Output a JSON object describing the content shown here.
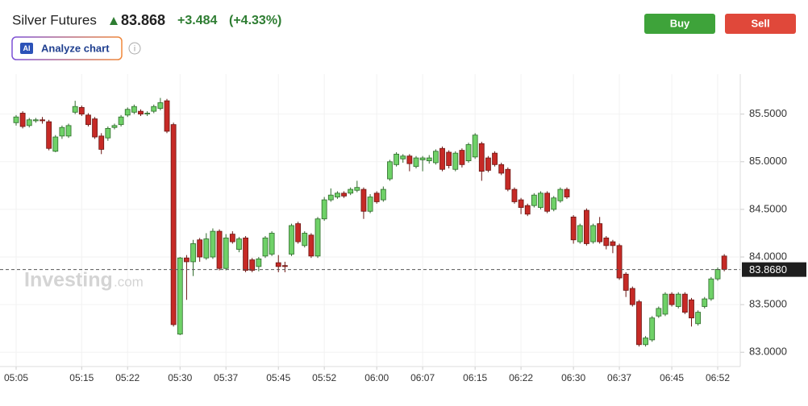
{
  "header": {
    "title": "Silver Futures",
    "price": "83.868",
    "change": "+3.484",
    "change_percent": "(+4.33%)",
    "ai_badge": "AI",
    "analyze": "Analyze chart",
    "buy": "Buy",
    "sell": "Sell"
  },
  "chart_data": {
    "type": "candlestick",
    "watermark": "Investing",
    "watermark_suffix": ".com",
    "categories": [
      "05:05",
      null,
      null,
      null,
      null,
      null,
      null,
      null,
      null,
      null,
      "05:15",
      null,
      null,
      null,
      null,
      null,
      null,
      "05:22",
      null,
      null,
      null,
      null,
      null,
      null,
      null,
      "05:30",
      null,
      null,
      null,
      null,
      null,
      null,
      "05:37",
      null,
      null,
      null,
      null,
      null,
      null,
      null,
      "05:45",
      null,
      null,
      null,
      null,
      null,
      null,
      "05:52",
      null,
      null,
      null,
      null,
      null,
      null,
      null,
      "06:00",
      null,
      null,
      null,
      null,
      null,
      null,
      "06:07",
      null,
      null,
      null,
      null,
      null,
      null,
      null,
      "06:15",
      null,
      null,
      null,
      null,
      null,
      null,
      "06:22",
      null,
      null,
      null,
      null,
      null,
      null,
      null,
      "06:30",
      null,
      null,
      null,
      null,
      null,
      null,
      "06:37",
      null,
      null,
      null,
      null,
      null,
      null,
      null,
      "06:45",
      null,
      null,
      null,
      null,
      null,
      null,
      "06:52",
      null
    ],
    "open": [
      85.41,
      85.51,
      85.38,
      85.43,
      85.44,
      85.42,
      85.11,
      85.27,
      85.27,
      85.52,
      85.57,
      85.49,
      85.45,
      85.27,
      85.25,
      85.36,
      85.39,
      85.49,
      85.52,
      85.53,
      85.51,
      85.53,
      85.56,
      85.64,
      85.39,
      83.19,
      83.99,
      83.95,
      84.18,
      83.99,
      84.0,
      84.27,
      83.88,
      84.24,
      84.08,
      84.2,
      83.97,
      83.9,
      84.01,
      84.03,
      83.94,
      83.91,
      84.03,
      84.35,
      84.12,
      84.23,
      84.01,
      84.4,
      84.6,
      84.63,
      84.67,
      84.67,
      84.7,
      84.71,
      84.48,
      84.67,
      84.6,
      84.82,
      84.97,
      85.03,
      85.06,
      84.95,
      85.02,
      85.01,
      84.99,
      85.14,
      85.1,
      84.92,
      85.12,
      85.01,
      85.05,
      85.19,
      85.04,
      85.09,
      84.97,
      84.92,
      84.71,
      84.6,
      84.54,
      84.54,
      84.52,
      84.67,
      84.5,
      84.59,
      84.71,
      84.42,
      84.16,
      84.49,
      84.16,
      84.35,
      84.2,
      84.16,
      84.12,
      83.82,
      83.67,
      83.53,
      83.08,
      83.13,
      83.38,
      83.4,
      83.61,
      83.48,
      83.61,
      83.55,
      83.3,
      83.48,
      83.56,
      83.77,
      84.01
    ],
    "high": [
      85.49,
      85.53,
      85.46,
      85.46,
      85.47,
      85.44,
      85.28,
      85.38,
      85.4,
      85.64,
      85.59,
      85.51,
      85.47,
      85.3,
      85.37,
      85.4,
      85.49,
      85.57,
      85.6,
      85.55,
      85.53,
      85.6,
      85.67,
      85.66,
      85.41,
      84.0,
      84.02,
      84.18,
      84.2,
      84.25,
      84.3,
      84.29,
      84.24,
      84.27,
      84.21,
      84.22,
      83.99,
      84.0,
      84.22,
      84.27,
      84.02,
      83.95,
      84.35,
      84.37,
      84.27,
      84.25,
      84.42,
      84.63,
      84.72,
      84.69,
      84.69,
      84.73,
      84.8,
      84.73,
      84.66,
      84.69,
      84.74,
      85.02,
      85.1,
      85.08,
      85.08,
      85.06,
      85.06,
      85.07,
      85.13,
      85.16,
      85.12,
      85.11,
      85.14,
      85.2,
      85.3,
      85.21,
      85.06,
      85.11,
      84.99,
      84.94,
      84.73,
      84.62,
      84.56,
      84.67,
      84.69,
      84.69,
      84.64,
      84.73,
      84.73,
      84.44,
      84.35,
      84.51,
      84.35,
      84.42,
      84.22,
      84.18,
      84.14,
      83.84,
      83.69,
      83.55,
      83.17,
      83.38,
      83.48,
      83.63,
      83.63,
      83.63,
      83.63,
      83.57,
      83.44,
      83.58,
      83.79,
      83.89,
      84.03
    ],
    "low": [
      85.38,
      85.35,
      85.36,
      85.41,
      85.4,
      85.12,
      85.1,
      85.24,
      85.25,
      85.5,
      85.48,
      85.37,
      85.24,
      85.08,
      85.22,
      85.34,
      85.37,
      85.47,
      85.5,
      85.48,
      85.48,
      85.51,
      85.54,
      85.3,
      83.27,
      83.18,
      83.55,
      83.8,
      83.95,
      83.97,
      83.98,
      83.86,
      83.86,
      84.14,
      84.05,
      83.84,
      83.84,
      83.85,
      83.99,
      84.01,
      83.84,
      83.84,
      84.01,
      84.14,
      84.1,
      83.99,
      83.99,
      84.38,
      84.58,
      84.61,
      84.62,
      84.65,
      84.68,
      84.4,
      84.46,
      84.56,
      84.58,
      84.8,
      84.95,
      84.99,
      84.9,
      84.93,
      84.9,
      84.98,
      84.97,
      84.9,
      84.93,
      84.9,
      84.94,
      84.99,
      85.03,
      84.8,
      84.89,
      84.95,
      84.86,
      84.69,
      84.56,
      84.45,
      84.43,
      84.52,
      84.5,
      84.46,
      84.48,
      84.57,
      84.61,
      84.14,
      84.14,
      84.12,
      84.14,
      84.14,
      84.08,
      84.04,
      83.76,
      83.58,
      83.48,
      83.06,
      83.06,
      83.11,
      83.36,
      83.38,
      83.48,
      83.46,
      83.4,
      83.27,
      83.28,
      83.46,
      83.54,
      83.75,
      83.85
    ],
    "close": [
      85.47,
      85.37,
      85.44,
      85.44,
      85.43,
      85.14,
      85.26,
      85.36,
      85.38,
      85.58,
      85.5,
      85.39,
      85.26,
      85.13,
      85.35,
      85.38,
      85.47,
      85.55,
      85.58,
      85.5,
      85.51,
      85.58,
      85.62,
      85.32,
      83.29,
      83.99,
      83.95,
      84.14,
      84.0,
      84.19,
      84.27,
      83.88,
      84.2,
      84.16,
      84.19,
      83.86,
      83.86,
      83.98,
      84.2,
      84.25,
      83.9,
      83.9,
      84.33,
      84.16,
      84.25,
      84.01,
      84.4,
      84.6,
      84.65,
      84.67,
      84.64,
      84.71,
      84.73,
      84.48,
      84.63,
      84.58,
      84.71,
      85.0,
      85.08,
      85.06,
      84.98,
      85.04,
      85.04,
      85.04,
      85.11,
      84.92,
      84.96,
      85.09,
      84.97,
      85.18,
      85.28,
      84.9,
      84.91,
      84.97,
      84.88,
      84.71,
      84.58,
      84.52,
      84.45,
      84.65,
      84.67,
      84.48,
      84.62,
      84.71,
      84.63,
      84.18,
      84.33,
      84.14,
      84.33,
      84.16,
      84.12,
      84.12,
      83.78,
      83.65,
      83.5,
      83.08,
      83.15,
      83.36,
      83.46,
      83.61,
      83.5,
      83.61,
      83.42,
      83.36,
      83.42,
      83.56,
      83.77,
      83.87,
      83.87
    ],
    "up_color": "#6fd168",
    "down_color": "#c62a26",
    "last_price": {
      "value": 83.868,
      "label": "83.8680"
    },
    "ylim": [
      82.85,
      85.92
    ],
    "yticks": [
      {
        "value": 83.0,
        "label": "83.0000"
      },
      {
        "value": 83.5,
        "label": "83.5000"
      },
      {
        "value": 84.0,
        "label": "84.0000"
      },
      {
        "value": 84.5,
        "label": "84.5000"
      },
      {
        "value": 85.0,
        "label": "85.0000"
      },
      {
        "value": 85.5,
        "label": "85.5000"
      }
    ],
    "grid": true
  }
}
